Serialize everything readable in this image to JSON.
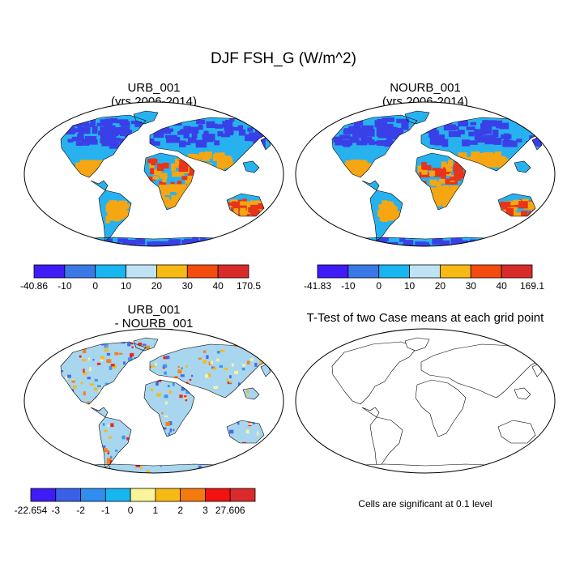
{
  "figure": {
    "title": "DJF FSH_G (W/m^2)"
  },
  "panels": [
    {
      "title_line1": "URB_001",
      "title_line2": "(yrs 2006-2014)",
      "colorbar": {
        "labels": [
          "-40.86",
          "-10",
          "0",
          "10",
          "20",
          "30",
          "40",
          "170.5"
        ],
        "colors": [
          "#3f1cf5",
          "#3a78e6",
          "#18b6f0",
          "#bfe3f2",
          "#f7b913",
          "#f44c0f",
          "#d92b2b"
        ]
      }
    },
    {
      "title_line1": "NOURB_001",
      "title_line2": "(yrs 2006-2014)",
      "colorbar": {
        "labels": [
          "-41.83",
          "-10",
          "0",
          "10",
          "20",
          "30",
          "40",
          "169.1"
        ],
        "colors": [
          "#3f1cf5",
          "#3a78e6",
          "#18b6f0",
          "#bfe3f2",
          "#f7b913",
          "#f44c0f",
          "#d92b2b"
        ]
      }
    },
    {
      "title_line1": "URB_001",
      "title_line2": "- NOURB_001",
      "colorbar": {
        "labels": [
          "-22.654",
          "-3",
          "-2",
          "-1",
          "0",
          "1",
          "2",
          "3",
          "27.606"
        ],
        "colors": [
          "#3f1cf5",
          "#3a5fe8",
          "#2f8ef0",
          "#18b6f0",
          "#fbf59a",
          "#f7b913",
          "#f47a0f",
          "#f2120f",
          "#d92b2b"
        ]
      }
    },
    {
      "title_line1": "T-Test of two Case means at each grid point",
      "note": "Cells are significant at 0.1 level",
      "marker_color": "#dd0000"
    }
  ],
  "map_colors": {
    "ocean": "#ffffff",
    "coast": "#000000",
    "cold": "#3a40e8",
    "mid": "#27b2ef",
    "warm": "#f5a612",
    "hot": "#e8341a",
    "diff_base": "#a9d6ef"
  }
}
